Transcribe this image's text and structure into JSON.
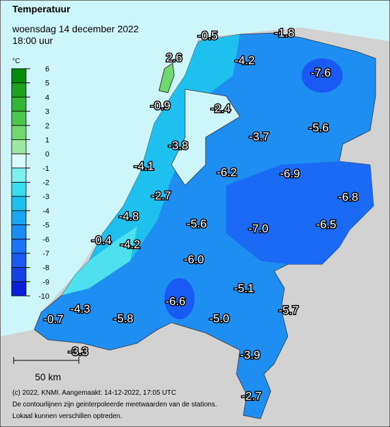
{
  "header": {
    "title": "Temperatuur",
    "date": "woensdag 14 december 2022",
    "time": "18:00 uur"
  },
  "legend": {
    "unit": "°C",
    "ticks": [
      6,
      5,
      4,
      3,
      2,
      1,
      0,
      -1,
      -2,
      -3,
      -4,
      -5,
      -6,
      -7,
      -8,
      -9,
      -10
    ],
    "colors": [
      "#0a8a0a",
      "#1fa01f",
      "#35b535",
      "#4cc84c",
      "#6fd86f",
      "#9fe89f",
      "#d8fbfb",
      "#7ff0f0",
      "#38dcec",
      "#1ec0f0",
      "#18a6f2",
      "#1a8cf6",
      "#1c73f8",
      "#1a5af4",
      "#1440e8",
      "#0a20d8"
    ]
  },
  "stations": [
    "-0.5",
    "-1.8",
    "2.6",
    "-4.2",
    "-7.6",
    "-0.9",
    "-2.4",
    "-3.7",
    "-5.6",
    "-3.8",
    "-4.1",
    "-6.2",
    "-6.9",
    "-6.8",
    "-2.7",
    "-4.8",
    "-5.6",
    "-7.0",
    "-6.5",
    "-0.4",
    "-4.2",
    "-6.0",
    "-5.1",
    "-6.6",
    "-4.3",
    "-5.7",
    "-0.7",
    "-5.8",
    "-5.0",
    "-3.3",
    "-3.9",
    "-2.7"
  ],
  "scale": "50 km",
  "footer": [
    "(c) 2022, KNMI. Aangemaakt: 14-12-2022, 17:05 UTC",
    "De contourlijnen zijn geinterpoleerde meetwaarden van de stations.",
    "Lokaal kunnen verschillen optreden."
  ]
}
